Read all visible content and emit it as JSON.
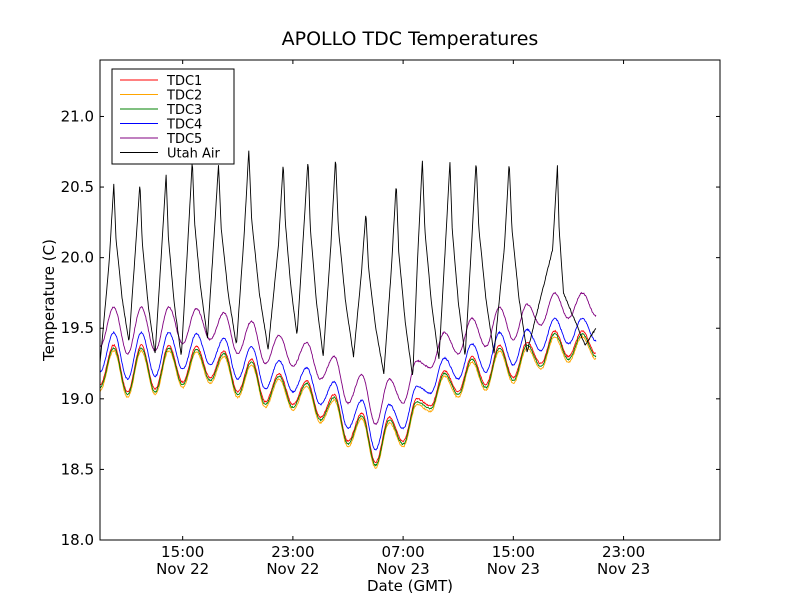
{
  "chart_data": {
    "type": "line",
    "title": "APOLLO TDC Temperatures",
    "xlabel": "Date (GMT)",
    "ylabel": "Temperature (C)",
    "xlim": [
      0,
      45
    ],
    "ylim": [
      18.0,
      21.4
    ],
    "grid": false,
    "legend_position": "top-left",
    "x_unit": "hours since Nov 22 09:00 GMT",
    "x_ticks": [
      {
        "value": 6,
        "line1": "15:00",
        "line2": "Nov 22"
      },
      {
        "value": 14,
        "line1": "23:00",
        "line2": "Nov 22"
      },
      {
        "value": 22,
        "line1": "07:00",
        "line2": "Nov 23"
      },
      {
        "value": 30,
        "line1": "15:00",
        "line2": "Nov 23"
      },
      {
        "value": 38,
        "line1": "23:00",
        "line2": "Nov 23"
      }
    ],
    "y_ticks": [
      {
        "value": 18.0,
        "label": "18.0"
      },
      {
        "value": 18.5,
        "label": "18.5"
      },
      {
        "value": 19.0,
        "label": "19.0"
      },
      {
        "value": 19.5,
        "label": "19.5"
      },
      {
        "value": 20.0,
        "label": "20.0"
      },
      {
        "value": 20.5,
        "label": "20.5"
      },
      {
        "value": 21.0,
        "label": "21.0"
      }
    ],
    "utah_air_peaks": [
      [
        1.0,
        20.52
      ],
      [
        2.9,
        20.53
      ],
      [
        4.8,
        20.59
      ],
      [
        6.7,
        20.69
      ],
      [
        8.6,
        20.66
      ],
      [
        10.8,
        20.76
      ],
      [
        13.3,
        20.68
      ],
      [
        15.1,
        20.7
      ],
      [
        17.1,
        20.71
      ],
      [
        19.3,
        20.32
      ],
      [
        21.5,
        20.53
      ],
      [
        23.4,
        20.69
      ],
      [
        25.4,
        20.68
      ],
      [
        27.3,
        20.69
      ],
      [
        29.7,
        20.68
      ],
      [
        33.2,
        20.65
      ]
    ],
    "utah_air_troughs": [
      [
        0.0,
        19.25
      ],
      [
        2.1,
        19.4
      ],
      [
        4.0,
        19.32
      ],
      [
        5.9,
        19.3
      ],
      [
        7.8,
        19.43
      ],
      [
        9.9,
        19.38
      ],
      [
        12.2,
        19.35
      ],
      [
        14.3,
        19.45
      ],
      [
        16.2,
        19.3
      ],
      [
        18.4,
        19.3
      ],
      [
        20.6,
        19.18
      ],
      [
        22.7,
        19.15
      ],
      [
        24.6,
        19.28
      ],
      [
        26.5,
        19.3
      ],
      [
        28.6,
        19.32
      ],
      [
        31.0,
        19.33
      ],
      [
        34.0,
        19.4
      ],
      [
        35.2,
        19.38
      ],
      [
        36.0,
        19.5
      ]
    ],
    "series": [
      {
        "name": "TDC1",
        "color": "#ff0000",
        "offset": 0.0
      },
      {
        "name": "TDC2",
        "color": "#ffa500",
        "offset": -0.04
      },
      {
        "name": "TDC3",
        "color": "#008000",
        "offset": -0.02
      },
      {
        "name": "TDC4",
        "color": "#0000ff",
        "offset": 0.09
      },
      {
        "name": "TDC5",
        "color": "#800080",
        "offset": 0.27
      },
      {
        "name": "Utah Air",
        "color": "#000000",
        "offset": null
      }
    ],
    "tdc1_base": [
      [
        0.0,
        19.1
      ],
      [
        1.0,
        19.38
      ],
      [
        2.0,
        19.05
      ],
      [
        3.0,
        19.38
      ],
      [
        4.0,
        19.07
      ],
      [
        5.0,
        19.38
      ],
      [
        6.0,
        19.12
      ],
      [
        7.0,
        19.37
      ],
      [
        8.0,
        19.15
      ],
      [
        9.0,
        19.34
      ],
      [
        10.0,
        19.05
      ],
      [
        11.0,
        19.28
      ],
      [
        12.0,
        18.98
      ],
      [
        13.0,
        19.18
      ],
      [
        14.0,
        18.96
      ],
      [
        15.0,
        19.13
      ],
      [
        16.0,
        18.87
      ],
      [
        17.0,
        19.03
      ],
      [
        18.0,
        18.7
      ],
      [
        19.0,
        18.9
      ],
      [
        20.0,
        18.55
      ],
      [
        21.0,
        18.87
      ],
      [
        22.0,
        18.7
      ],
      [
        23.0,
        19.0
      ],
      [
        24.0,
        18.95
      ],
      [
        25.0,
        19.2
      ],
      [
        26.0,
        19.05
      ],
      [
        27.0,
        19.3
      ],
      [
        28.0,
        19.1
      ],
      [
        29.0,
        19.38
      ],
      [
        30.0,
        19.15
      ],
      [
        31.0,
        19.4
      ],
      [
        32.0,
        19.25
      ],
      [
        33.0,
        19.48
      ],
      [
        34.0,
        19.3
      ],
      [
        35.0,
        19.48
      ],
      [
        36.0,
        19.32
      ]
    ]
  }
}
